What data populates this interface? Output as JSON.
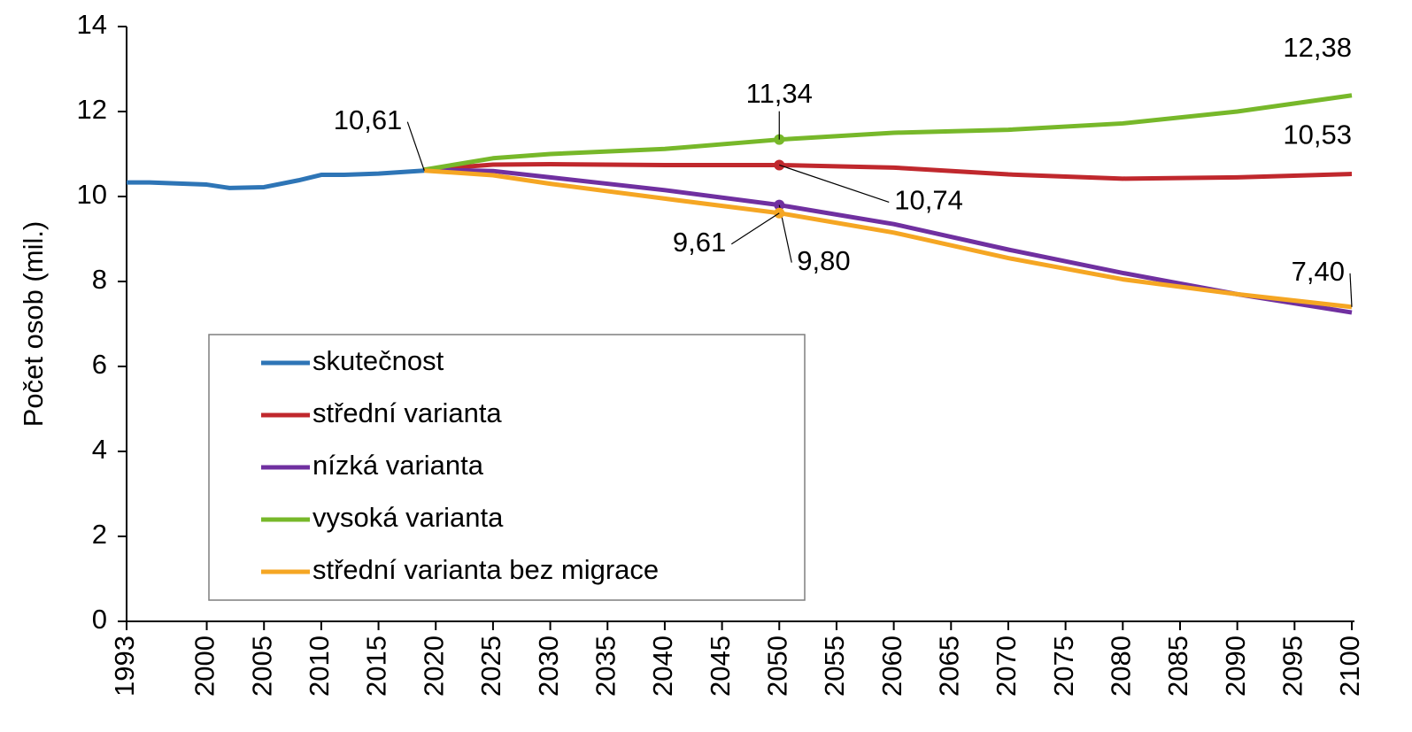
{
  "chart_data": {
    "type": "line",
    "y_label": "Počet osob (mil.)",
    "x": [
      1993,
      1995,
      2000,
      2002,
      2005,
      2008,
      2010,
      2012,
      2015,
      2019,
      2025,
      2030,
      2040,
      2050,
      2060,
      2070,
      2080,
      2090,
      2100
    ],
    "series": [
      {
        "name": "skutečnost",
        "color": "#2e75b6",
        "values": [
          10.33,
          10.33,
          10.28,
          10.2,
          10.22,
          10.38,
          10.51,
          10.51,
          10.54,
          10.61,
          null,
          null,
          null,
          null,
          null,
          null,
          null,
          null,
          null
        ],
        "value_labels": [
          null,
          null,
          null,
          null,
          null,
          null,
          null,
          null,
          null,
          "10,61",
          null,
          null,
          null,
          null,
          null,
          null,
          null,
          null,
          null
        ]
      },
      {
        "name": "střední varianta",
        "color": "#c0282d",
        "values": [
          null,
          null,
          null,
          null,
          null,
          null,
          null,
          null,
          null,
          10.63,
          10.75,
          10.76,
          10.74,
          10.74,
          10.68,
          10.52,
          10.42,
          10.45,
          10.53
        ],
        "value_labels": [
          null,
          null,
          null,
          null,
          null,
          null,
          null,
          null,
          null,
          null,
          null,
          null,
          null,
          "10,74",
          null,
          null,
          null,
          null,
          "10,53"
        ]
      },
      {
        "name": "nízká varianta",
        "color": "#7030a0",
        "values": [
          null,
          null,
          null,
          null,
          null,
          null,
          null,
          null,
          null,
          10.63,
          10.6,
          10.45,
          10.15,
          9.8,
          9.35,
          8.75,
          8.2,
          7.7,
          7.27
        ],
        "value_labels": [
          null,
          null,
          null,
          null,
          null,
          null,
          null,
          null,
          null,
          null,
          null,
          null,
          null,
          "9,80",
          null,
          null,
          null,
          null,
          null
        ]
      },
      {
        "name": "vysoká varianta",
        "color": "#77b82a",
        "values": [
          null,
          null,
          null,
          null,
          null,
          null,
          null,
          null,
          null,
          10.63,
          10.9,
          11.0,
          11.12,
          11.34,
          11.5,
          11.57,
          11.72,
          12.0,
          12.38
        ],
        "value_labels": [
          null,
          null,
          null,
          null,
          null,
          null,
          null,
          null,
          null,
          null,
          null,
          null,
          null,
          "11,34",
          null,
          null,
          null,
          null,
          "12,38"
        ]
      },
      {
        "name": "střední varianta bez migrace",
        "color": "#f5a623",
        "values": [
          null,
          null,
          null,
          null,
          null,
          null,
          null,
          null,
          null,
          10.61,
          10.5,
          10.3,
          9.95,
          9.61,
          9.15,
          8.55,
          8.05,
          7.7,
          7.4
        ],
        "value_labels": [
          null,
          null,
          null,
          null,
          null,
          null,
          null,
          null,
          null,
          null,
          null,
          null,
          null,
          "9,61",
          null,
          null,
          null,
          null,
          "7,40"
        ]
      }
    ],
    "xlim": [
      1993,
      2100
    ],
    "xticks": [
      1993,
      2000,
      2005,
      2010,
      2015,
      2020,
      2025,
      2030,
      2035,
      2040,
      2045,
      2050,
      2055,
      2060,
      2065,
      2070,
      2075,
      2080,
      2085,
      2090,
      2095,
      2100
    ],
    "ylim": [
      0,
      14
    ],
    "yticks": [
      0,
      2,
      4,
      6,
      8,
      10,
      12,
      14
    ],
    "grid": false,
    "legend": "lower left"
  }
}
